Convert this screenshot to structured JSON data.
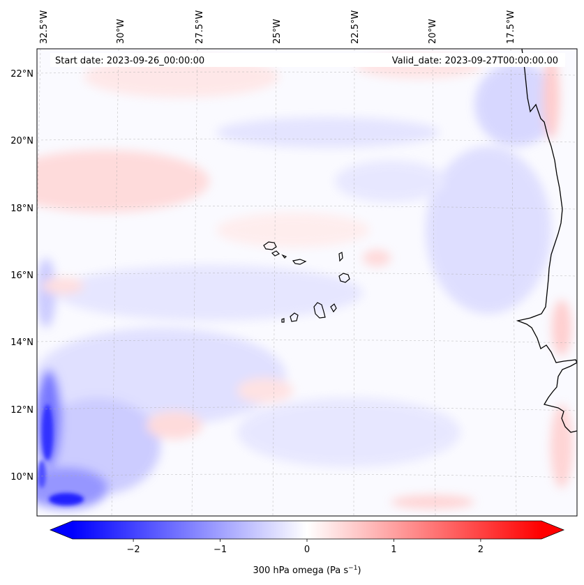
{
  "map": {
    "title_left": "Start date: 2023-09-26_00:00:00",
    "title_right": "Valid_date: 2023-09-27T00:00:00.00",
    "field_name": "300 hPa omega",
    "lon_labels": [
      "32.5°W",
      "30°W",
      "27.5°W",
      "25°W",
      "22.5°W",
      "20°W",
      "17.5°W"
    ],
    "lat_labels": [
      "22°N",
      "20°N",
      "18°N",
      "16°N",
      "14°N",
      "12°N",
      "10°N"
    ],
    "features": [
      "Cape Verde islands",
      "West African coastline"
    ]
  },
  "colorbar": {
    "label_main": "300 hPa omega (Pa s",
    "label_sup": "−1",
    "label_end": ")",
    "ticks": [
      "−2",
      "−1",
      "0",
      "1",
      "2"
    ],
    "tick_values": [
      -2,
      -1,
      0,
      1,
      2
    ],
    "range": [
      -2.7,
      2.7
    ],
    "colormap": "bwr",
    "colors": {
      "low": "#0000ff",
      "mid": "#ffffff",
      "high": "#ff0000"
    }
  }
}
